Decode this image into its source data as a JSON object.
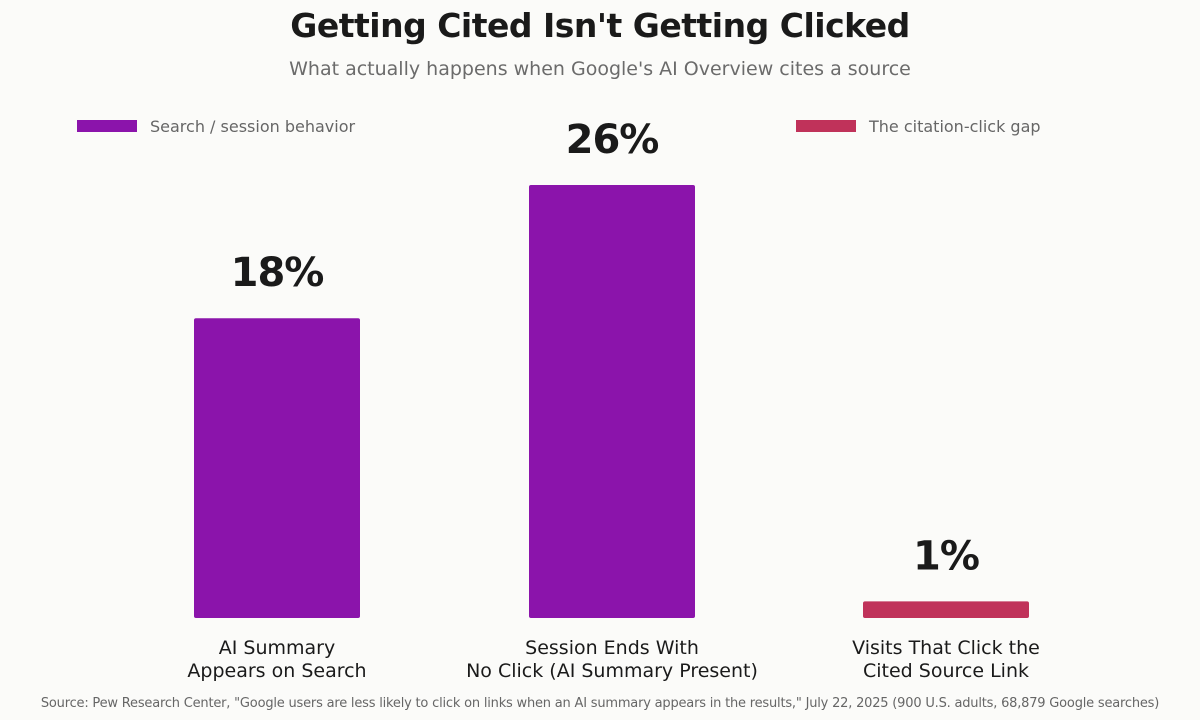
{
  "chart_data": {
    "type": "bar",
    "title": "Getting Cited Isn't Getting Clicked",
    "subtitle": "What actually happens when Google's AI Overview cites a source",
    "categories": [
      [
        "AI Summary",
        "Appears on Search"
      ],
      [
        "Session Ends With",
        "No Click (AI Summary Present)"
      ],
      [
        "Visits That Click the",
        "Cited Source Link"
      ]
    ],
    "values": [
      18,
      26,
      1
    ],
    "value_labels": [
      "18%",
      "26%",
      "1%"
    ],
    "value_unit": "%",
    "bar_groups": [
      "behavior",
      "behavior",
      "gap"
    ],
    "ylim": [
      0,
      26
    ],
    "grid": false,
    "legend": {
      "placement": "top",
      "entries": [
        {
          "label": "Search / session behavior",
          "color": "#8b14ab"
        },
        {
          "label": "The citation-click gap",
          "color": "#c0325a"
        }
      ]
    },
    "colors": {
      "behavior": "#8b14ab",
      "gap": "#c0325a"
    },
    "source": "Source: Pew Research Center, \"Google users are less likely to click on links when an AI summary appears in the results,\" July 22, 2025 (900 U.S. adults, 68,879 Google searches)"
  }
}
